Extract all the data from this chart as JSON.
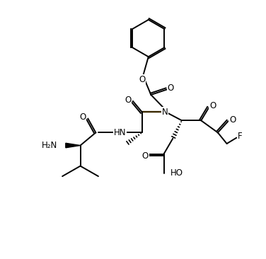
{
  "background_color": "#ffffff",
  "line_color": "#000000",
  "dark_bond_color": "#3a2800",
  "figsize": [
    3.76,
    3.66
  ],
  "dpi": 100,
  "xlim": [
    0,
    10
  ],
  "ylim": [
    0,
    10
  ]
}
